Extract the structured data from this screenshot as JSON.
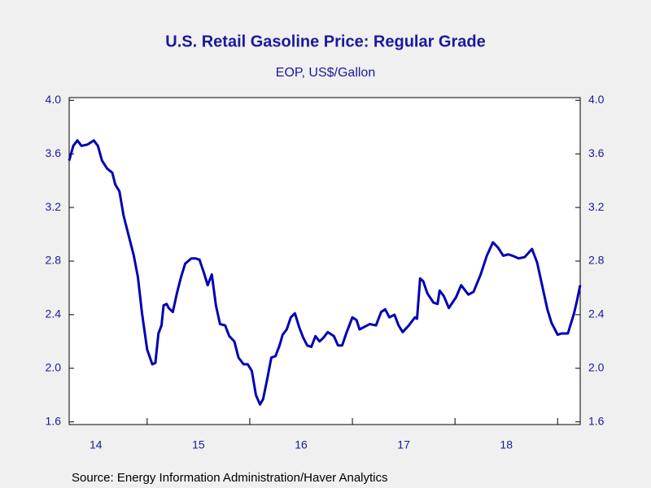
{
  "chart_data": {
    "type": "line",
    "title": "U.S. Retail Gasoline Price: Regular Grade",
    "subtitle": "EOP, US$/Gallon",
    "source": "Source:  Energy Information Administration/Haver Analytics",
    "x": [
      2014.24,
      2014.28,
      2014.32,
      2014.36,
      2014.42,
      2014.48,
      2014.52,
      2014.56,
      2014.61,
      2014.66,
      2014.69,
      2014.73,
      2014.77,
      2014.82,
      2014.87,
      2014.91,
      2014.95,
      2015.0,
      2015.05,
      2015.08,
      2015.11,
      2015.14,
      2015.16,
      2015.19,
      2015.21,
      2015.25,
      2015.29,
      2015.33,
      2015.37,
      2015.43,
      2015.47,
      2015.51,
      2015.55,
      2015.59,
      2015.63,
      2015.67,
      2015.71,
      2015.76,
      2015.8,
      2015.85,
      2015.89,
      2015.94,
      2015.98,
      2016.02,
      2016.06,
      2016.1,
      2016.13,
      2016.17,
      2016.21,
      2016.25,
      2016.29,
      2016.32,
      2016.36,
      2016.4,
      2016.44,
      2016.48,
      2016.52,
      2016.56,
      2016.6,
      2016.64,
      2016.68,
      2016.72,
      2016.76,
      2016.82,
      2016.86,
      2016.9,
      2016.94,
      2017.0,
      2017.04,
      2017.07,
      2017.12,
      2017.17,
      2017.23,
      2017.28,
      2017.32,
      2017.36,
      2017.41,
      2017.45,
      2017.49,
      2017.55,
      2017.61,
      2017.63,
      2017.66,
      2017.69,
      2017.73,
      2017.79,
      2017.83,
      2017.85,
      2017.89,
      2017.94,
      2018.01,
      2018.06,
      2018.09,
      2018.13,
      2018.18,
      2018.25,
      2018.31,
      2018.37,
      2018.42,
      2018.47,
      2018.52,
      2018.56,
      2018.62,
      2018.68,
      2018.75,
      2018.8,
      2018.84,
      2018.9,
      2018.94,
      2019.0,
      2019.04,
      2019.1,
      2019.16,
      2019.19,
      2019.22
    ],
    "series": [
      {
        "name": "Regular Grade",
        "color": "#0000b4",
        "values": [
          3.55,
          3.66,
          3.7,
          3.66,
          3.67,
          3.7,
          3.66,
          3.55,
          3.49,
          3.46,
          3.37,
          3.32,
          3.14,
          2.99,
          2.84,
          2.68,
          2.41,
          2.14,
          2.03,
          2.04,
          2.26,
          2.32,
          2.47,
          2.48,
          2.45,
          2.42,
          2.56,
          2.68,
          2.78,
          2.82,
          2.82,
          2.81,
          2.72,
          2.62,
          2.7,
          2.47,
          2.33,
          2.32,
          2.24,
          2.2,
          2.08,
          2.03,
          2.03,
          1.98,
          1.8,
          1.73,
          1.77,
          1.92,
          2.08,
          2.09,
          2.17,
          2.25,
          2.29,
          2.38,
          2.41,
          2.31,
          2.23,
          2.17,
          2.16,
          2.24,
          2.2,
          2.23,
          2.27,
          2.24,
          2.17,
          2.17,
          2.26,
          2.38,
          2.36,
          2.29,
          2.31,
          2.33,
          2.32,
          2.42,
          2.44,
          2.38,
          2.4,
          2.32,
          2.27,
          2.32,
          2.38,
          2.37,
          2.67,
          2.65,
          2.56,
          2.49,
          2.48,
          2.58,
          2.54,
          2.45,
          2.53,
          2.62,
          2.59,
          2.55,
          2.57,
          2.7,
          2.84,
          2.94,
          2.9,
          2.84,
          2.85,
          2.84,
          2.82,
          2.83,
          2.89,
          2.79,
          2.65,
          2.44,
          2.34,
          2.25,
          2.26,
          2.26,
          2.41,
          2.51,
          2.62
        ]
      }
    ],
    "xlim": [
      2014.24,
      2019.22
    ],
    "xticks": [
      {
        "value": 2014.5,
        "label": "14"
      },
      {
        "value": 2015.5,
        "label": "15"
      },
      {
        "value": 2016.5,
        "label": "16"
      },
      {
        "value": 2017.5,
        "label": "17"
      },
      {
        "value": 2018.5,
        "label": "18"
      }
    ],
    "xminorticks": [
      2015,
      2016,
      2017,
      2018,
      2019
    ],
    "ylim": [
      1.58,
      4.02
    ],
    "yticks": [
      {
        "value": 1.6,
        "label": "1.6"
      },
      {
        "value": 2.0,
        "label": "2.0"
      },
      {
        "value": 2.4,
        "label": "2.4"
      },
      {
        "value": 2.8,
        "label": "2.8"
      },
      {
        "value": 3.2,
        "label": "3.2"
      },
      {
        "value": 3.6,
        "label": "3.6"
      },
      {
        "value": 4.0,
        "label": "4.0"
      }
    ],
    "y2lim": [
      1.58,
      4.02
    ],
    "y2ticks": [
      {
        "value": 1.6,
        "label": "1.6"
      },
      {
        "value": 2.0,
        "label": "2.0"
      },
      {
        "value": 2.4,
        "label": "2.4"
      },
      {
        "value": 2.8,
        "label": "2.8"
      },
      {
        "value": 3.2,
        "label": "3.2"
      },
      {
        "value": 3.6,
        "label": "3.6"
      },
      {
        "value": 4.0,
        "label": "4.0"
      }
    ]
  }
}
